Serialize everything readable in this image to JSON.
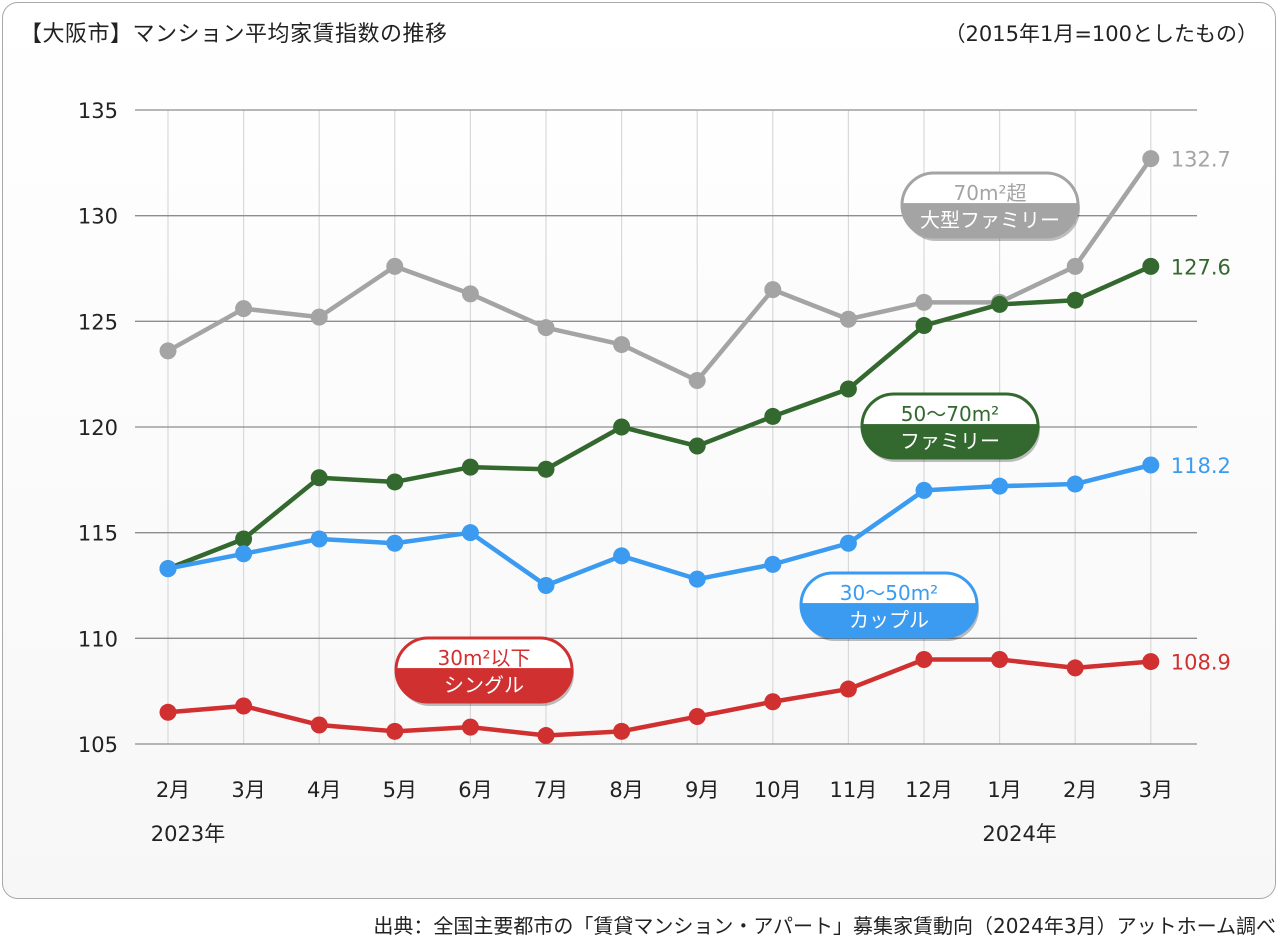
{
  "title": "【大阪市】マンション平均家賃指数の推移",
  "subtitle": "（2015年1月=100としたもの）",
  "source": "出典：全国主要都市の「賃貸マンション・アパート」募集家賃動向（2024年3月）アットホーム調べ",
  "chart_data": {
    "type": "line",
    "categories": [
      "2月",
      "3月",
      "4月",
      "5月",
      "6月",
      "7月",
      "8月",
      "9月",
      "10月",
      "11月",
      "12月",
      "1月",
      "2月",
      "3月"
    ],
    "year_labels": [
      {
        "text": "2023年",
        "index": 0
      },
      {
        "text": "2024年",
        "index": 11
      }
    ],
    "ylim": [
      105,
      135
    ],
    "yticks": [
      105,
      110,
      115,
      120,
      125,
      130,
      135
    ],
    "grid": true,
    "series": [
      {
        "key": "large_family",
        "line1": "70m²超",
        "line2": "大型ファミリー",
        "color": "#a4a4a4",
        "end_label": "132.7",
        "values": [
          123.6,
          125.6,
          125.2,
          127.6,
          126.3,
          124.7,
          123.9,
          122.2,
          126.5,
          125.1,
          125.9,
          125.9,
          127.6,
          132.7
        ]
      },
      {
        "key": "family",
        "line1": "50〜70m²",
        "line2": "ファミリー",
        "color": "#33682f",
        "end_label": "127.6",
        "values": [
          113.3,
          114.7,
          117.6,
          117.4,
          118.1,
          118.0,
          120.0,
          119.1,
          120.5,
          121.8,
          124.8,
          125.8,
          126.0,
          127.6
        ]
      },
      {
        "key": "couple",
        "line1": "30〜50m²",
        "line2": "カップル",
        "color": "#3a9bf0",
        "end_label": "118.2",
        "values": [
          113.3,
          114.0,
          114.7,
          114.5,
          115.0,
          112.5,
          113.9,
          112.8,
          113.5,
          114.5,
          117.0,
          117.2,
          117.3,
          118.2
        ]
      },
      {
        "key": "single",
        "line1": "30m²以下",
        "line2": "シングル",
        "color": "#d03030",
        "end_label": "108.9",
        "values": [
          106.5,
          106.8,
          105.9,
          105.6,
          105.8,
          105.4,
          105.6,
          106.3,
          107.0,
          107.6,
          109.0,
          109.0,
          108.6,
          108.9
        ]
      }
    ]
  }
}
